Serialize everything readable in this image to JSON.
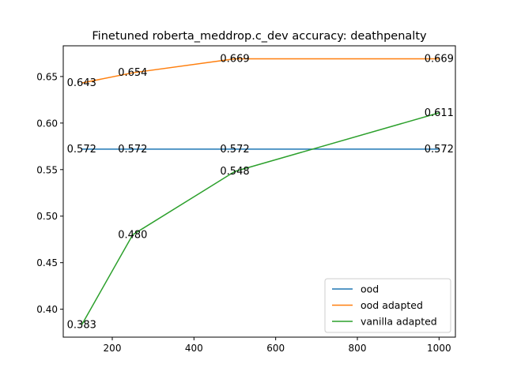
{
  "chart_data": {
    "type": "line",
    "title": "Finetuned roberta_meddrop.c_dev accuracy: deathpenalty",
    "xlabel": "",
    "ylabel": "",
    "xlim": [
      80,
      1040
    ],
    "ylim": [
      0.37,
      0.683
    ],
    "xticks": [
      200,
      400,
      600,
      800,
      1000
    ],
    "xtick_labels": [
      "200",
      "400",
      "600",
      "800",
      "1000"
    ],
    "yticks": [
      0.4,
      0.45,
      0.5,
      0.55,
      0.6,
      0.65
    ],
    "ytick_labels": [
      "0.40",
      "0.45",
      "0.50",
      "0.55",
      "0.60",
      "0.65"
    ],
    "grid": false,
    "legend_position": "lower-right",
    "series": [
      {
        "name": "ood",
        "color": "#1f77b4",
        "x": [
          125,
          250,
          500,
          1000
        ],
        "y": [
          0.572,
          0.572,
          0.572,
          0.572
        ],
        "labels": [
          "0.572",
          "0.572",
          "0.572",
          "0.572"
        ]
      },
      {
        "name": "ood adapted",
        "color": "#ff7f0e",
        "x": [
          125,
          250,
          500,
          1000
        ],
        "y": [
          0.643,
          0.654,
          0.669,
          0.669
        ],
        "labels": [
          "0.643",
          "0.654",
          "0.669",
          "0.669"
        ]
      },
      {
        "name": "vanilla adapted",
        "color": "#2ca02c",
        "x": [
          125,
          250,
          500,
          1000
        ],
        "y": [
          0.383,
          0.48,
          0.548,
          0.611
        ],
        "labels": [
          "0.383",
          "0.480",
          "0.548",
          "0.611"
        ]
      }
    ]
  }
}
